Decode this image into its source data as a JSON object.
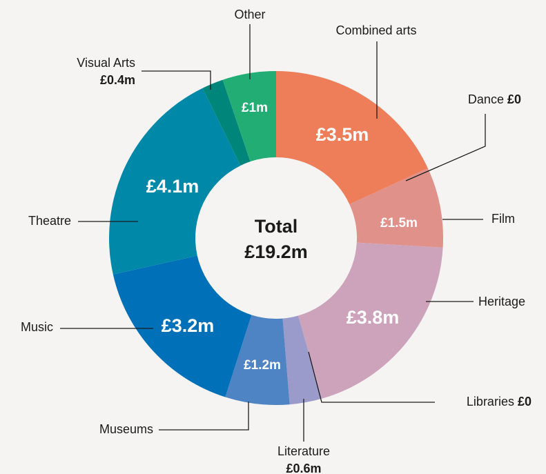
{
  "chart_data": {
    "type": "donut",
    "center_text": [
      "Total",
      "£19.2m"
    ],
    "segments": [
      {
        "name": "Combined arts",
        "value": 3.5,
        "value_label": "£3.5m",
        "color": "#ee7d5a"
      },
      {
        "name": "Dance",
        "value": 0,
        "value_label": "£0"
      },
      {
        "name": "Film",
        "value": 1.5,
        "value_label": "£1.5m",
        "color": "#e0918a"
      },
      {
        "name": "Heritage",
        "value": 3.8,
        "value_label": "£3.8m",
        "color": "#cca3bb"
      },
      {
        "name": "Libraries",
        "value": 0,
        "value_label": "£0"
      },
      {
        "name": "Literature",
        "value": 0.6,
        "value_label": "£0.6m",
        "color": "#9a9acb"
      },
      {
        "name": "Museums",
        "value": 1.2,
        "value_label": "£1.2m",
        "color": "#4f84c4"
      },
      {
        "name": "Music",
        "value": 3.2,
        "value_label": "£3.2m",
        "color": "#0071b9"
      },
      {
        "name": "Theatre",
        "value": 4.1,
        "value_label": "£4.1m",
        "color": "#0088a8"
      },
      {
        "name": "Visual Arts",
        "value": 0.4,
        "value_label": "£0.4m",
        "color": "#00857a"
      },
      {
        "name": "Other",
        "value": 1,
        "value_label": "£1m",
        "color": "#22ad75"
      }
    ]
  }
}
